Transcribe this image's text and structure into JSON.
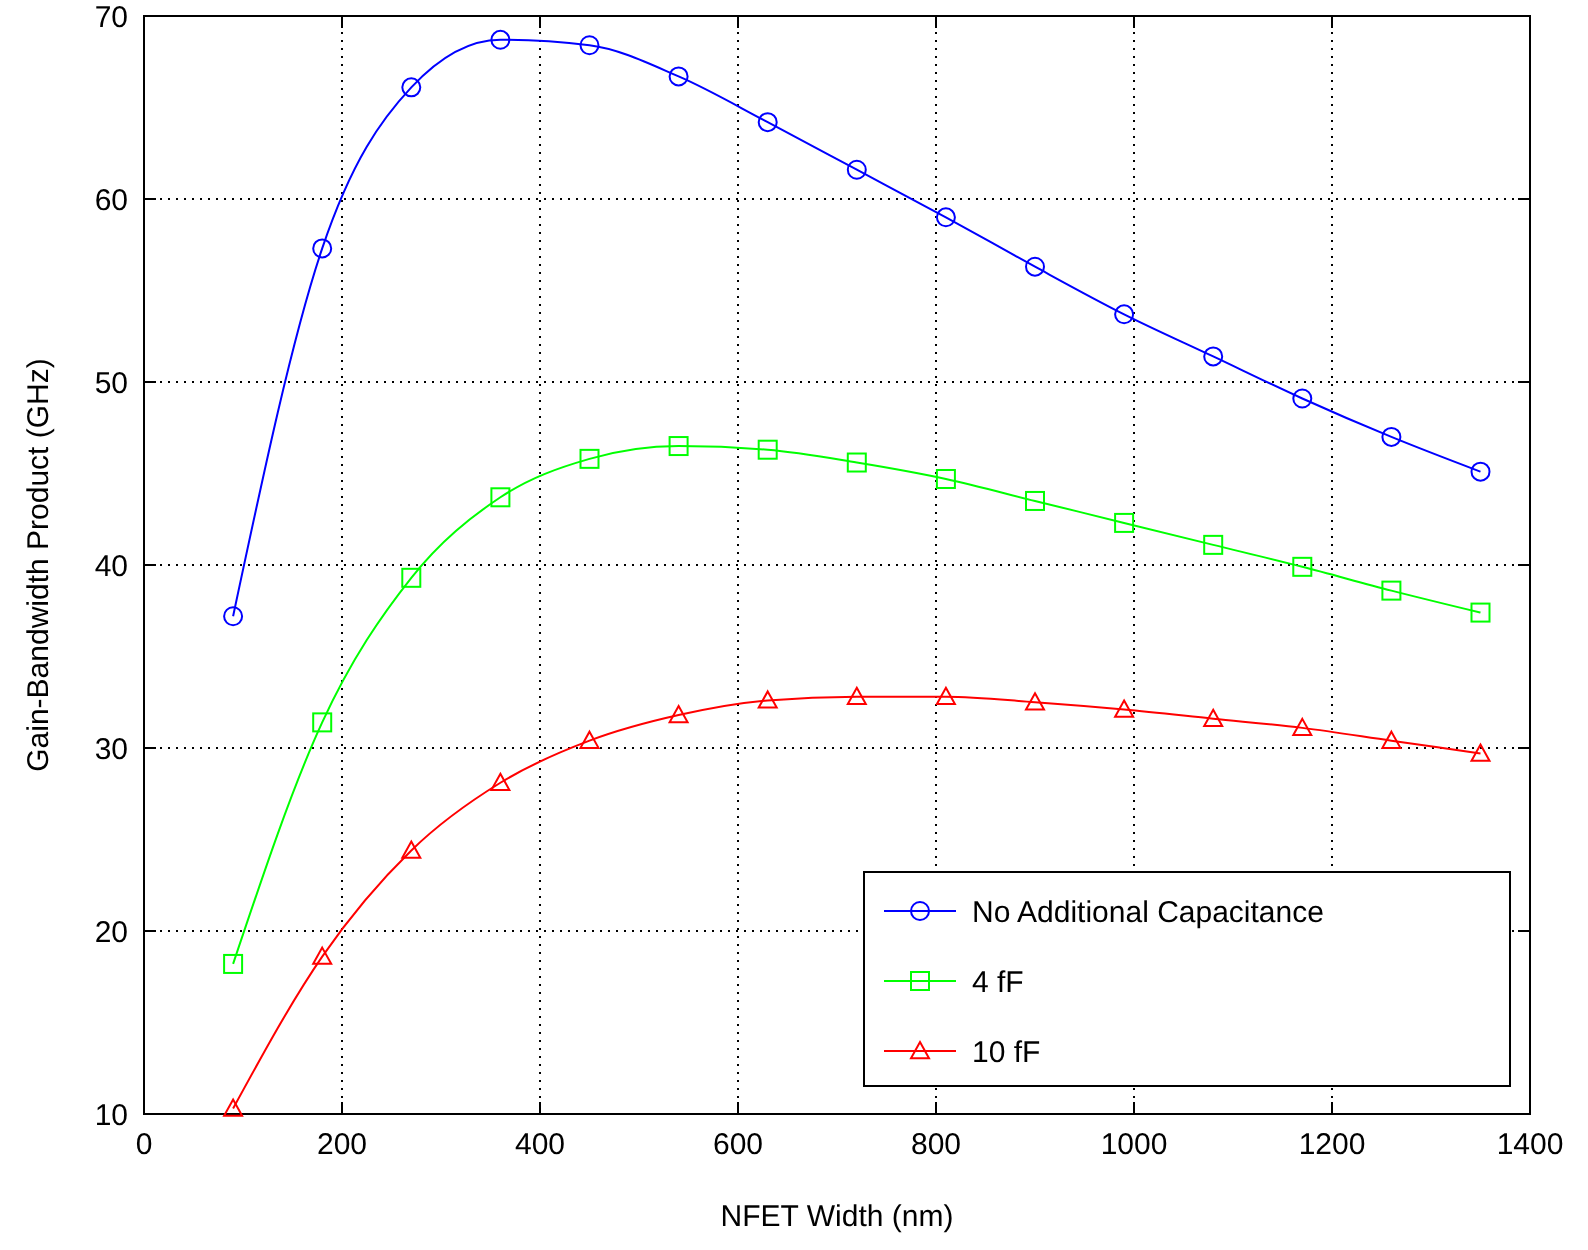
{
  "chart_data": {
    "type": "line",
    "xlabel": "NFET Width (nm)",
    "ylabel": "Gain-Bandwidth Product (GHz)",
    "x": [
      90,
      180,
      270,
      360,
      450,
      540,
      630,
      720,
      810,
      900,
      990,
      1080,
      1170,
      1260,
      1350
    ],
    "series": [
      {
        "name": "No Additional Capacitance",
        "color": "#0000ff",
        "marker": "circle",
        "values": [
          37.2,
          57.3,
          66.1,
          68.7,
          68.4,
          66.7,
          64.2,
          61.6,
          59.0,
          56.3,
          53.7,
          51.4,
          49.1,
          47.0,
          45.1
        ]
      },
      {
        "name": "4 fF",
        "color": "#00ff00",
        "marker": "square",
        "values": [
          18.2,
          31.4,
          39.3,
          43.7,
          45.8,
          46.5,
          46.3,
          45.6,
          44.7,
          43.5,
          42.3,
          41.1,
          39.9,
          38.6,
          37.4
        ]
      },
      {
        "name": "10 fF",
        "color": "#ff0000",
        "marker": "triangle",
        "values": [
          10.3,
          18.6,
          24.4,
          28.1,
          30.4,
          31.8,
          32.6,
          32.8,
          32.8,
          32.5,
          32.1,
          31.6,
          31.1,
          30.4,
          29.7
        ]
      }
    ],
    "xlim": [
      0,
      1400
    ],
    "xticks": [
      0,
      200,
      400,
      600,
      800,
      1000,
      1200,
      1400
    ],
    "ylim": [
      10,
      70
    ],
    "yticks": [
      10,
      20,
      30,
      40,
      50,
      60,
      70
    ],
    "grid": true,
    "legend": "bottom right",
    "line_style": "solid"
  }
}
